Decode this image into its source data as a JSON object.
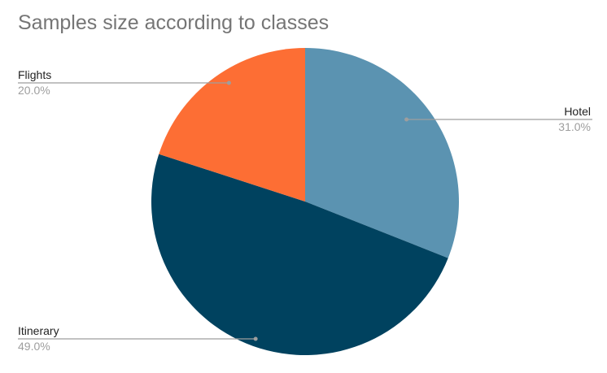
{
  "chart_data": {
    "type": "pie",
    "title": "Samples size according to classes",
    "slices": [
      {
        "label": "Hotel",
        "value": 31.0,
        "display": "31.0%",
        "color": "#5b93b1"
      },
      {
        "label": "Itinerary",
        "value": 49.0,
        "display": "49.0%",
        "color": "#00425f"
      },
      {
        "label": "Flights",
        "value": 20.0,
        "display": "20.0%",
        "color": "#fd6e34"
      }
    ],
    "start": "12 o'clock",
    "direction": "clockwise",
    "legend": "none",
    "labels": "outside with leader lines"
  }
}
